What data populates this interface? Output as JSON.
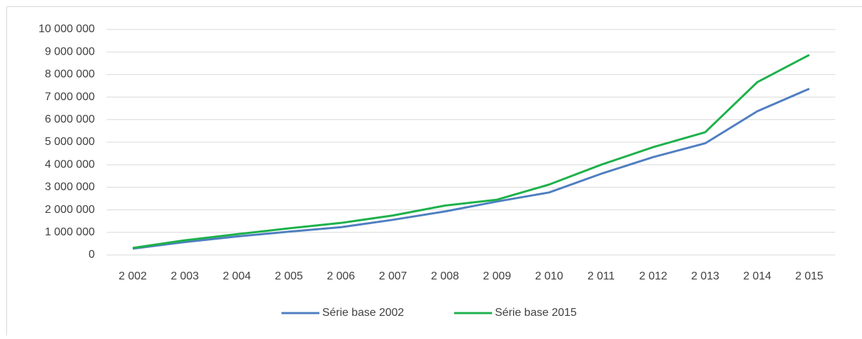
{
  "chart_data": {
    "type": "line",
    "categories": [
      "2 002",
      "2 003",
      "2 004",
      "2 005",
      "2 006",
      "2 007",
      "2 008",
      "2 009",
      "2 010",
      "2 011",
      "2 012",
      "2 013",
      "2 014",
      "2 015"
    ],
    "series": [
      {
        "name": "Série base 2002",
        "color": "#4f7fc0",
        "values": [
          280000,
          570000,
          820000,
          1030000,
          1230000,
          1560000,
          1930000,
          2370000,
          2770000,
          3600000,
          4340000,
          4950000,
          6370000,
          7370000
        ]
      },
      {
        "name": "Série base 2015",
        "color": "#1db14b",
        "values": [
          310000,
          650000,
          920000,
          1180000,
          1420000,
          1750000,
          2190000,
          2450000,
          3120000,
          4000000,
          4780000,
          5440000,
          7660000,
          8870000
        ]
      }
    ],
    "ylim": [
      0,
      10000000
    ],
    "yticks": [
      0,
      {
        "value": 1000000,
        "label": "1 000 000"
      },
      {
        "value": 2000000,
        "label": "2 000 000"
      },
      {
        "value": 3000000,
        "label": "3 000 000"
      },
      {
        "value": 4000000,
        "label": "4 000 000"
      },
      {
        "value": 5000000,
        "label": "5 000 000"
      },
      {
        "value": 6000000,
        "label": "6 000 000"
      },
      {
        "value": 7000000,
        "label": "7 000 000"
      },
      {
        "value": 8000000,
        "label": "8 000 000"
      },
      {
        "value": 9000000,
        "label": "9 000 000"
      },
      {
        "value": 10000000,
        "label": "10 000 000"
      }
    ],
    "grid": true,
    "legend": "bottom"
  }
}
